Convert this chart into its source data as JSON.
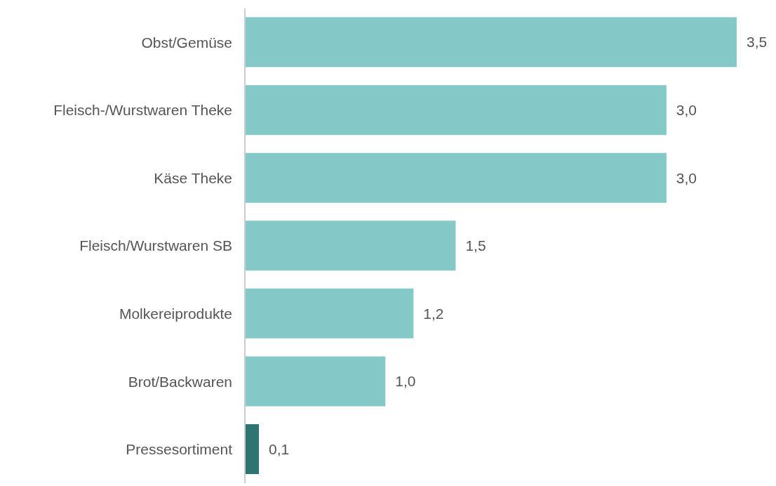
{
  "chart_data": {
    "type": "bar",
    "orientation": "horizontal",
    "categories": [
      "Obst/Gemüse",
      "Fleisch-/Wurstwaren Theke",
      "Käse Theke",
      "Fleisch/Wurstwaren SB",
      "Molkereiprodukte",
      "Brot/Backwaren",
      "Pressesortiment"
    ],
    "values": [
      3.5,
      3.0,
      3.0,
      1.5,
      1.2,
      1.0,
      0.1
    ],
    "colors": [
      "#84c9c8",
      "#84c9c8",
      "#84c9c8",
      "#84c9c8",
      "#84c9c8",
      "#84c9c8",
      "#2e7473"
    ],
    "value_labels": [
      "3,5",
      "3,0",
      "3,0",
      "1,5",
      "1,2",
      "1,0",
      "0,1"
    ],
    "grid": false,
    "legend": false
  }
}
